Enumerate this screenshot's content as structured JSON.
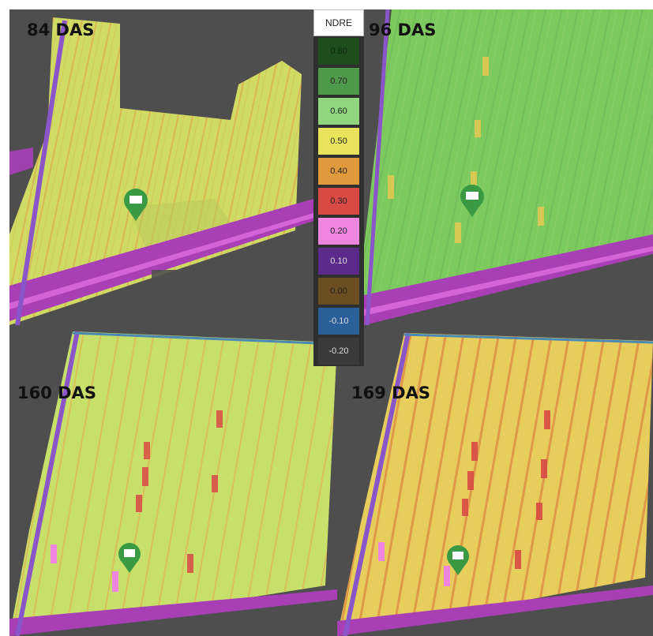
{
  "panels": [
    {
      "label": "84 DAS"
    },
    {
      "label": "96 DAS"
    },
    {
      "label": "160 DAS"
    },
    {
      "label": "169 DAS"
    }
  ],
  "legend": {
    "title": "NDRE",
    "items": [
      {
        "value": "0.80",
        "color": "#1e4d1e"
      },
      {
        "value": "0.70",
        "color": "#4f9a4a"
      },
      {
        "value": "0.60",
        "color": "#8fd67f"
      },
      {
        "value": "0.50",
        "color": "#e8e35a"
      },
      {
        "value": "0.40",
        "color": "#e09a3c"
      },
      {
        "value": "0.30",
        "color": "#d94a45"
      },
      {
        "value": "0.20",
        "color": "#ee86e0"
      },
      {
        "value": "0.10",
        "color": "#5b2a8a"
      },
      {
        "value": "0.00",
        "color": "#6b4e1f"
      },
      {
        "value": "-0.10",
        "color": "#2a5f9a"
      },
      {
        "value": "-0.20",
        "color": "#3a3a3a"
      }
    ]
  },
  "marker_icon": "field-pin-icon"
}
